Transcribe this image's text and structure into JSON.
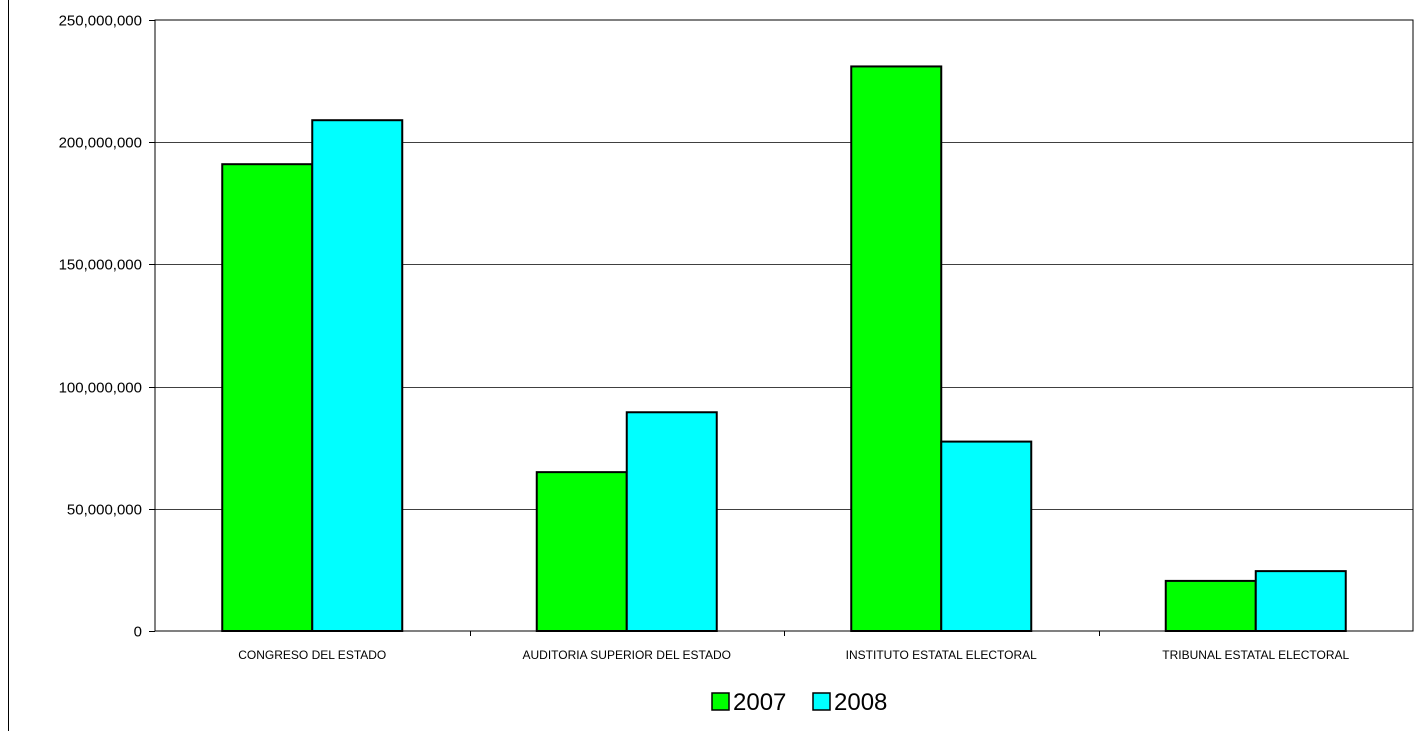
{
  "chart_data": {
    "type": "bar",
    "title": "",
    "xlabel": "",
    "ylabel": "",
    "categories": [
      "CONGRESO DEL ESTADO",
      "AUDITORIA SUPERIOR DEL ESTADO",
      "INSTITUTO ESTATAL ELECTORAL",
      "TRIBUNAL ESTATAL ELECTORAL"
    ],
    "series": [
      {
        "name": "2007",
        "color": "#00ff00",
        "values": [
          191000000,
          65000000,
          231000000,
          20500000
        ]
      },
      {
        "name": "2008",
        "color": "#00ffff",
        "values": [
          209000000,
          89500000,
          77500000,
          24500000
        ]
      }
    ],
    "ylim": [
      0,
      250000000
    ],
    "yticks": [
      0,
      50000000,
      100000000,
      150000000,
      200000000,
      250000000
    ],
    "ytick_labels": [
      "0",
      "50,000,000",
      "100,000,000",
      "150,000,000",
      "200,000,000",
      "250,000,000"
    ],
    "grid": true,
    "legend_position": "bottom-center"
  }
}
